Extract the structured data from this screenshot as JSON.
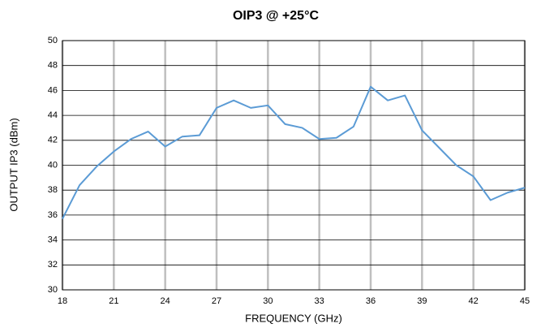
{
  "chart_data": {
    "type": "line",
    "title": "OIP3 @ +25°C",
    "x_label": "FREQUENCY (GHz)",
    "y_label": "OUTPUT IP3 (dBm)",
    "x": [
      18,
      19,
      20,
      21,
      22,
      23,
      24,
      25,
      26,
      27,
      28,
      29,
      30,
      31,
      32,
      33,
      34,
      35,
      36,
      37,
      38,
      39,
      40,
      41,
      42,
      43,
      44,
      45
    ],
    "series": [
      {
        "name": "OIP3",
        "color": "#5b9bd5",
        "values": [
          35.7,
          38.4,
          39.9,
          41.1,
          42.1,
          42.7,
          41.5,
          42.3,
          42.4,
          44.6,
          45.2,
          44.6,
          44.8,
          43.3,
          43.0,
          42.1,
          42.2,
          43.1,
          46.3,
          45.2,
          45.6,
          42.8,
          41.4,
          40.0,
          39.1,
          37.2,
          37.8,
          38.2
        ]
      }
    ],
    "xlim": [
      18,
      45
    ],
    "xticks": [
      18,
      21,
      24,
      27,
      30,
      33,
      36,
      39,
      42,
      45
    ],
    "ylim": [
      30,
      50
    ],
    "yticks": [
      30,
      32,
      34,
      36,
      38,
      40,
      42,
      44,
      46,
      48,
      50
    ],
    "grid": true
  }
}
